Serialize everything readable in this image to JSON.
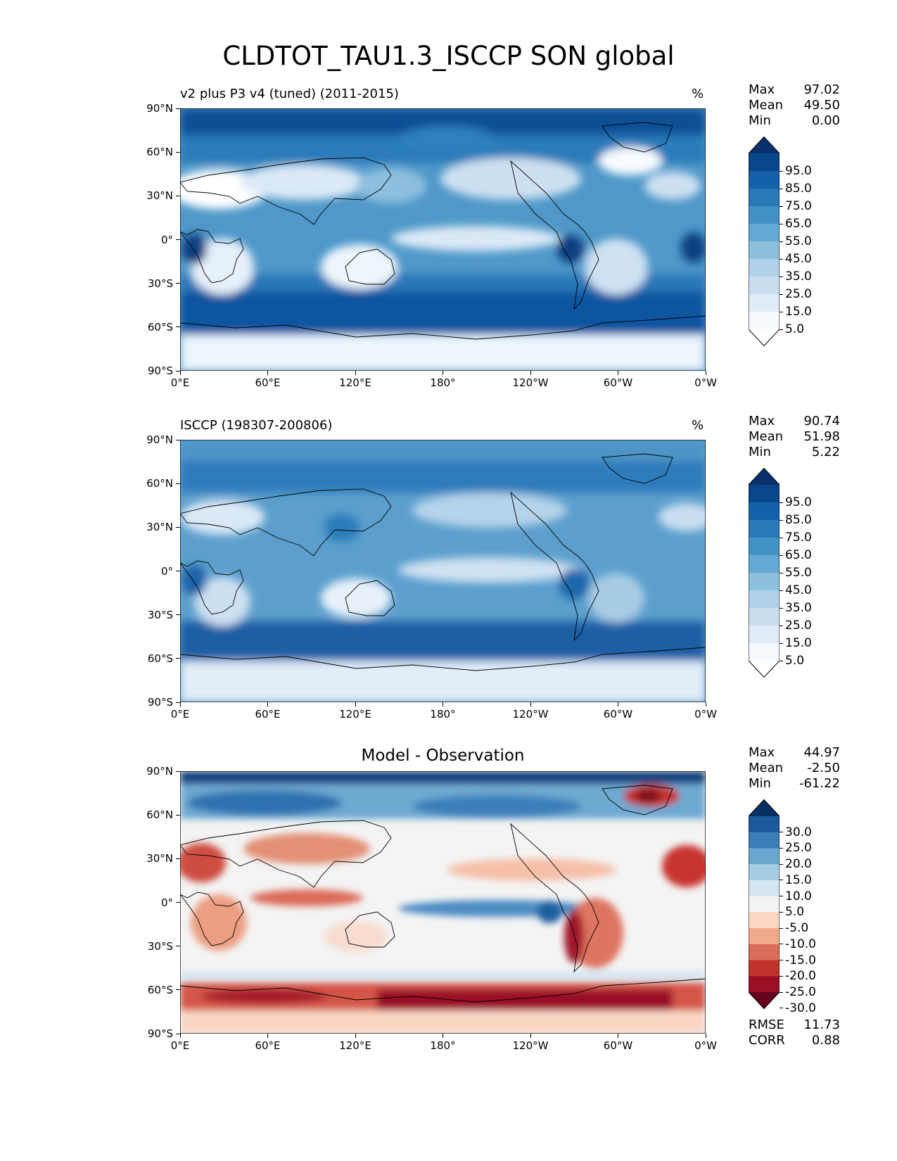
{
  "figure_title": "CLDTOT_TAU1.3_ISCCP SON global",
  "chart_data": [
    {
      "type": "heatmap",
      "title": "v2 plus P3 v4 (tuned) (2011-2015)",
      "units": "%",
      "stats": [
        {
          "label": "Max",
          "value": "97.02"
        },
        {
          "label": "Mean",
          "value": "49.50"
        },
        {
          "label": "Min",
          "value": "0.00"
        }
      ],
      "x_ticks": [
        "0°E",
        "60°E",
        "120°E",
        "180°",
        "120°W",
        "60°W",
        "0°W"
      ],
      "y_ticks": [
        "90°N",
        "60°N",
        "30°N",
        "0°",
        "30°S",
        "60°S",
        "90°S"
      ],
      "xlim": [
        0,
        360
      ],
      "ylim": [
        -90,
        90
      ],
      "colorbar": {
        "labels": [
          "95.0",
          "85.0",
          "75.0",
          "65.0",
          "55.0",
          "45.0",
          "35.0",
          "25.0",
          "15.0",
          "5.0"
        ],
        "colors": [
          "#08306b",
          "#08468b",
          "#1561a9",
          "#2979b9",
          "#4392c6",
          "#64a9d3",
          "#8cc0dd",
          "#b0d2e8",
          "#cbdef0",
          "#e0ecf7",
          "#f7fbff",
          "#ffffff"
        ]
      }
    },
    {
      "type": "heatmap",
      "title": "ISCCP (198307-200806)",
      "units": "%",
      "stats": [
        {
          "label": "Max",
          "value": "90.74"
        },
        {
          "label": "Mean",
          "value": "51.98"
        },
        {
          "label": "Min",
          "value": "5.22"
        }
      ],
      "x_ticks": [
        "0°E",
        "60°E",
        "120°E",
        "180°",
        "120°W",
        "60°W",
        "0°W"
      ],
      "y_ticks": [
        "90°N",
        "60°N",
        "30°N",
        "0°",
        "30°S",
        "60°S",
        "90°S"
      ],
      "xlim": [
        0,
        360
      ],
      "ylim": [
        -90,
        90
      ],
      "colorbar": {
        "labels": [
          "95.0",
          "85.0",
          "75.0",
          "65.0",
          "55.0",
          "45.0",
          "35.0",
          "25.0",
          "15.0",
          "5.0"
        ],
        "colors": [
          "#08306b",
          "#08468b",
          "#1561a9",
          "#2979b9",
          "#4392c6",
          "#64a9d3",
          "#8cc0dd",
          "#b0d2e8",
          "#cbdef0",
          "#e0ecf7",
          "#f7fbff",
          "#ffffff"
        ]
      }
    },
    {
      "type": "heatmap",
      "title": "Model - Observation",
      "stats": [
        {
          "label": "Max",
          "value": "44.97"
        },
        {
          "label": "Mean",
          "value": "-2.50"
        },
        {
          "label": "Min",
          "value": "-61.22"
        }
      ],
      "extra_stats": [
        {
          "label": "RMSE",
          "value": "11.73"
        },
        {
          "label": "CORR",
          "value": "0.88"
        }
      ],
      "x_ticks": [
        "0°E",
        "60°E",
        "120°E",
        "180°",
        "120°W",
        "60°W",
        "0°W"
      ],
      "y_ticks": [
        "90°N",
        "60°N",
        "30°N",
        "0°",
        "30°S",
        "60°S",
        "90°S"
      ],
      "xlim": [
        0,
        360
      ],
      "ylim": [
        -90,
        90
      ],
      "colorbar": {
        "labels": [
          "30.0",
          "25.0",
          "20.0",
          "15.0",
          "10.0",
          "5.0",
          "-5.0",
          "-10.0",
          "-15.0",
          "-20.0",
          "-25.0",
          "-30.0"
        ],
        "colors": [
          "#053061",
          "#1a5a9c",
          "#3a7fb9",
          "#6aa7cf",
          "#a6cde2",
          "#d4e6f0",
          "#f4f4f4",
          "#fbd7c4",
          "#f2a98b",
          "#dc6c5a",
          "#c1322d",
          "#9a0f23",
          "#67001f"
        ]
      }
    }
  ]
}
